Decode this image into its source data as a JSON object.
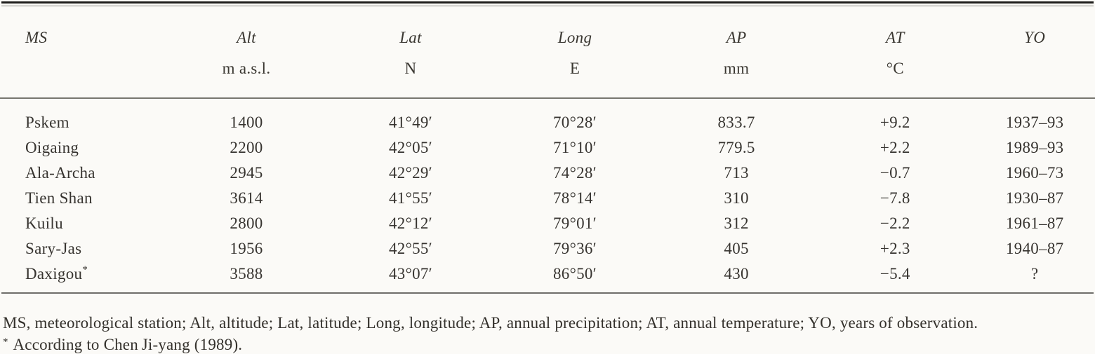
{
  "page": {
    "background_color": "#fbfaf7",
    "text_color": "#34312c",
    "top_rule_color": "#1e1d1b",
    "inner_rule_color": "#77766f"
  },
  "table": {
    "columns": [
      {
        "key": "ms",
        "label": "MS",
        "unit": ""
      },
      {
        "key": "alt",
        "label": "Alt",
        "unit": "m a.s.l."
      },
      {
        "key": "lat",
        "label": "Lat",
        "unit": "N"
      },
      {
        "key": "long",
        "label": "Long",
        "unit": "E"
      },
      {
        "key": "ap",
        "label": "AP",
        "unit": "mm"
      },
      {
        "key": "at",
        "label": "AT",
        "unit": "°C"
      },
      {
        "key": "yo",
        "label": "YO",
        "unit": ""
      }
    ],
    "rows": [
      {
        "ms": "Pskem",
        "sup": "",
        "alt": "1400",
        "lat": "41°49′",
        "long": "70°28′",
        "ap": "833.7",
        "at": "+9.2",
        "yo": "1937–93"
      },
      {
        "ms": "Oigaing",
        "sup": "",
        "alt": "2200",
        "lat": "42°05′",
        "long": "71°10′",
        "ap": "779.5",
        "at": "+2.2",
        "yo": "1989–93"
      },
      {
        "ms": "Ala-Archa",
        "sup": "",
        "alt": "2945",
        "lat": "42°29′",
        "long": "74°28′",
        "ap": "713",
        "at": "−0.7",
        "yo": "1960–73"
      },
      {
        "ms": "Tien Shan",
        "sup": "",
        "alt": "3614",
        "lat": "41°55′",
        "long": "78°14′",
        "ap": "310",
        "at": "−7.8",
        "yo": "1930–87"
      },
      {
        "ms": "Kuilu",
        "sup": "",
        "alt": "2800",
        "lat": "42°12′",
        "long": "79°01′",
        "ap": "312",
        "at": "−2.2",
        "yo": "1961–87"
      },
      {
        "ms": "Sary-Jas",
        "sup": "",
        "alt": "1956",
        "lat": "42°55′",
        "long": "79°36′",
        "ap": "405",
        "at": "+2.3",
        "yo": "1940–87"
      },
      {
        "ms": "Daxigou",
        "sup": "*",
        "alt": "3588",
        "lat": "43°07′",
        "long": "86°50′",
        "ap": "430",
        "at": "−5.4",
        "yo": "?"
      }
    ]
  },
  "footnotes": {
    "abbreviations": "MS, meteorological station; Alt, altitude; Lat, latitude; Long, longitude; AP, annual precipitation; AT, annual temperature; YO, years of observation.",
    "asterisk_symbol": "*",
    "asterisk_text": "According to Chen Ji-yang (1989)."
  }
}
